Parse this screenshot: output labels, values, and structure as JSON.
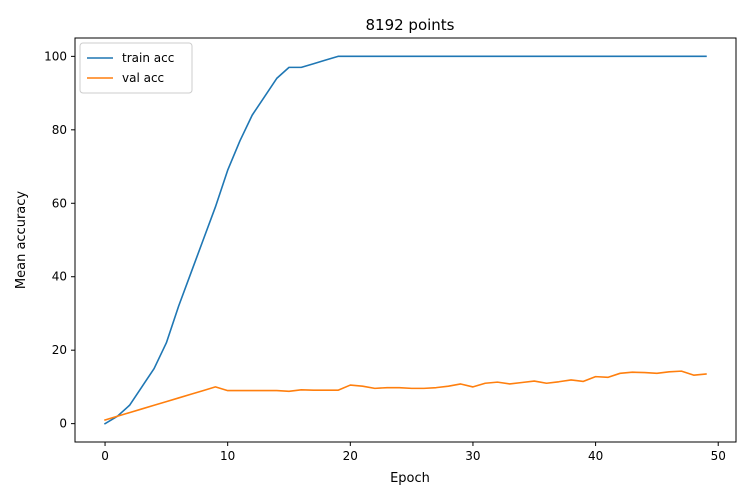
{
  "chart_data": {
    "type": "line",
    "title": "8192 points",
    "xlabel": "Epoch",
    "ylabel": "Mean accuracy",
    "xlim": [
      -2.45,
      51.45
    ],
    "ylim": [
      -5,
      105
    ],
    "xticks": [
      0,
      10,
      20,
      30,
      40,
      50
    ],
    "yticks": [
      0,
      20,
      40,
      60,
      80,
      100
    ],
    "grid": false,
    "legend_position": "top-left",
    "x": [
      0,
      1,
      2,
      3,
      4,
      5,
      6,
      7,
      8,
      9,
      10,
      11,
      12,
      13,
      14,
      15,
      16,
      17,
      18,
      19,
      20,
      21,
      22,
      23,
      24,
      25,
      26,
      27,
      28,
      29,
      30,
      31,
      32,
      33,
      34,
      35,
      36,
      37,
      38,
      39,
      40,
      41,
      42,
      43,
      44,
      45,
      46,
      47,
      48,
      49
    ],
    "series": [
      {
        "name": "train acc",
        "color": "#1f77b4",
        "values": [
          0,
          2,
          5,
          10,
          15,
          22,
          32,
          41,
          50,
          59,
          69,
          77,
          84,
          89,
          94,
          97,
          97,
          98,
          99,
          100,
          100,
          100,
          100,
          100,
          100,
          100,
          100,
          100,
          100,
          100,
          100,
          100,
          100,
          100,
          100,
          100,
          100,
          100,
          100,
          100,
          100,
          100,
          100,
          100,
          100,
          100,
          100,
          100,
          100,
          100
        ]
      },
      {
        "name": "val acc",
        "color": "#ff7f0e",
        "values": [
          1,
          2,
          3,
          4,
          5,
          6,
          7,
          8,
          9,
          10,
          9,
          9,
          9,
          9,
          9,
          8.8,
          9.2,
          9.1,
          9.1,
          9.1,
          10.5,
          10.2,
          9.6,
          9.8,
          9.8,
          9.6,
          9.6,
          9.8,
          10.2,
          10.8,
          10,
          11,
          11.3,
          10.8,
          11.2,
          11.6,
          11,
          11.4,
          11.9,
          11.5,
          12.8,
          12.6,
          13.7,
          14,
          13.9,
          13.7,
          14.1,
          14.3,
          13.2,
          13.5
        ]
      }
    ]
  }
}
